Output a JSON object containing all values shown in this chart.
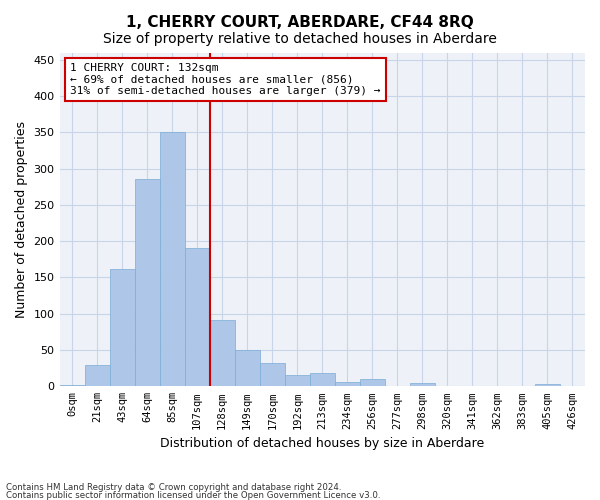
{
  "title": "1, CHERRY COURT, ABERDARE, CF44 8RQ",
  "subtitle": "Size of property relative to detached houses in Aberdare",
  "xlabel": "Distribution of detached houses by size in Aberdare",
  "ylabel": "Number of detached properties",
  "bar_labels": [
    "0sqm",
    "21sqm",
    "43sqm",
    "64sqm",
    "85sqm",
    "107sqm",
    "128sqm",
    "149sqm",
    "170sqm",
    "192sqm",
    "213sqm",
    "234sqm",
    "256sqm",
    "277sqm",
    "298sqm",
    "320sqm",
    "341sqm",
    "362sqm",
    "383sqm",
    "405sqm",
    "426sqm"
  ],
  "bar_heights": [
    2,
    30,
    162,
    285,
    350,
    190,
    92,
    50,
    32,
    15,
    18,
    6,
    10,
    1,
    5,
    1,
    0,
    0,
    0,
    3,
    0
  ],
  "bar_color": "#aec6e8",
  "bar_edge_color": "#7aadd4",
  "vline_color": "#cc0000",
  "ylim": [
    0,
    460
  ],
  "yticks": [
    0,
    50,
    100,
    150,
    200,
    250,
    300,
    350,
    400,
    450
  ],
  "annotation_line1": "1 CHERRY COURT: 132sqm",
  "annotation_line2": "← 69% of detached houses are smaller (856)",
  "annotation_line3": "31% of semi-detached houses are larger (379) →",
  "annotation_box_color": "#ffffff",
  "annotation_box_edge": "#cc0000",
  "footer_line1": "Contains HM Land Registry data © Crown copyright and database right 2024.",
  "footer_line2": "Contains public sector information licensed under the Open Government Licence v3.0.",
  "bg_color": "#eef2f8",
  "grid_color": "#c8d4e8",
  "title_fontsize": 11,
  "subtitle_fontsize": 10,
  "tick_fontsize": 7.5,
  "ylabel_fontsize": 9,
  "xlabel_fontsize": 9,
  "vline_index": 6
}
